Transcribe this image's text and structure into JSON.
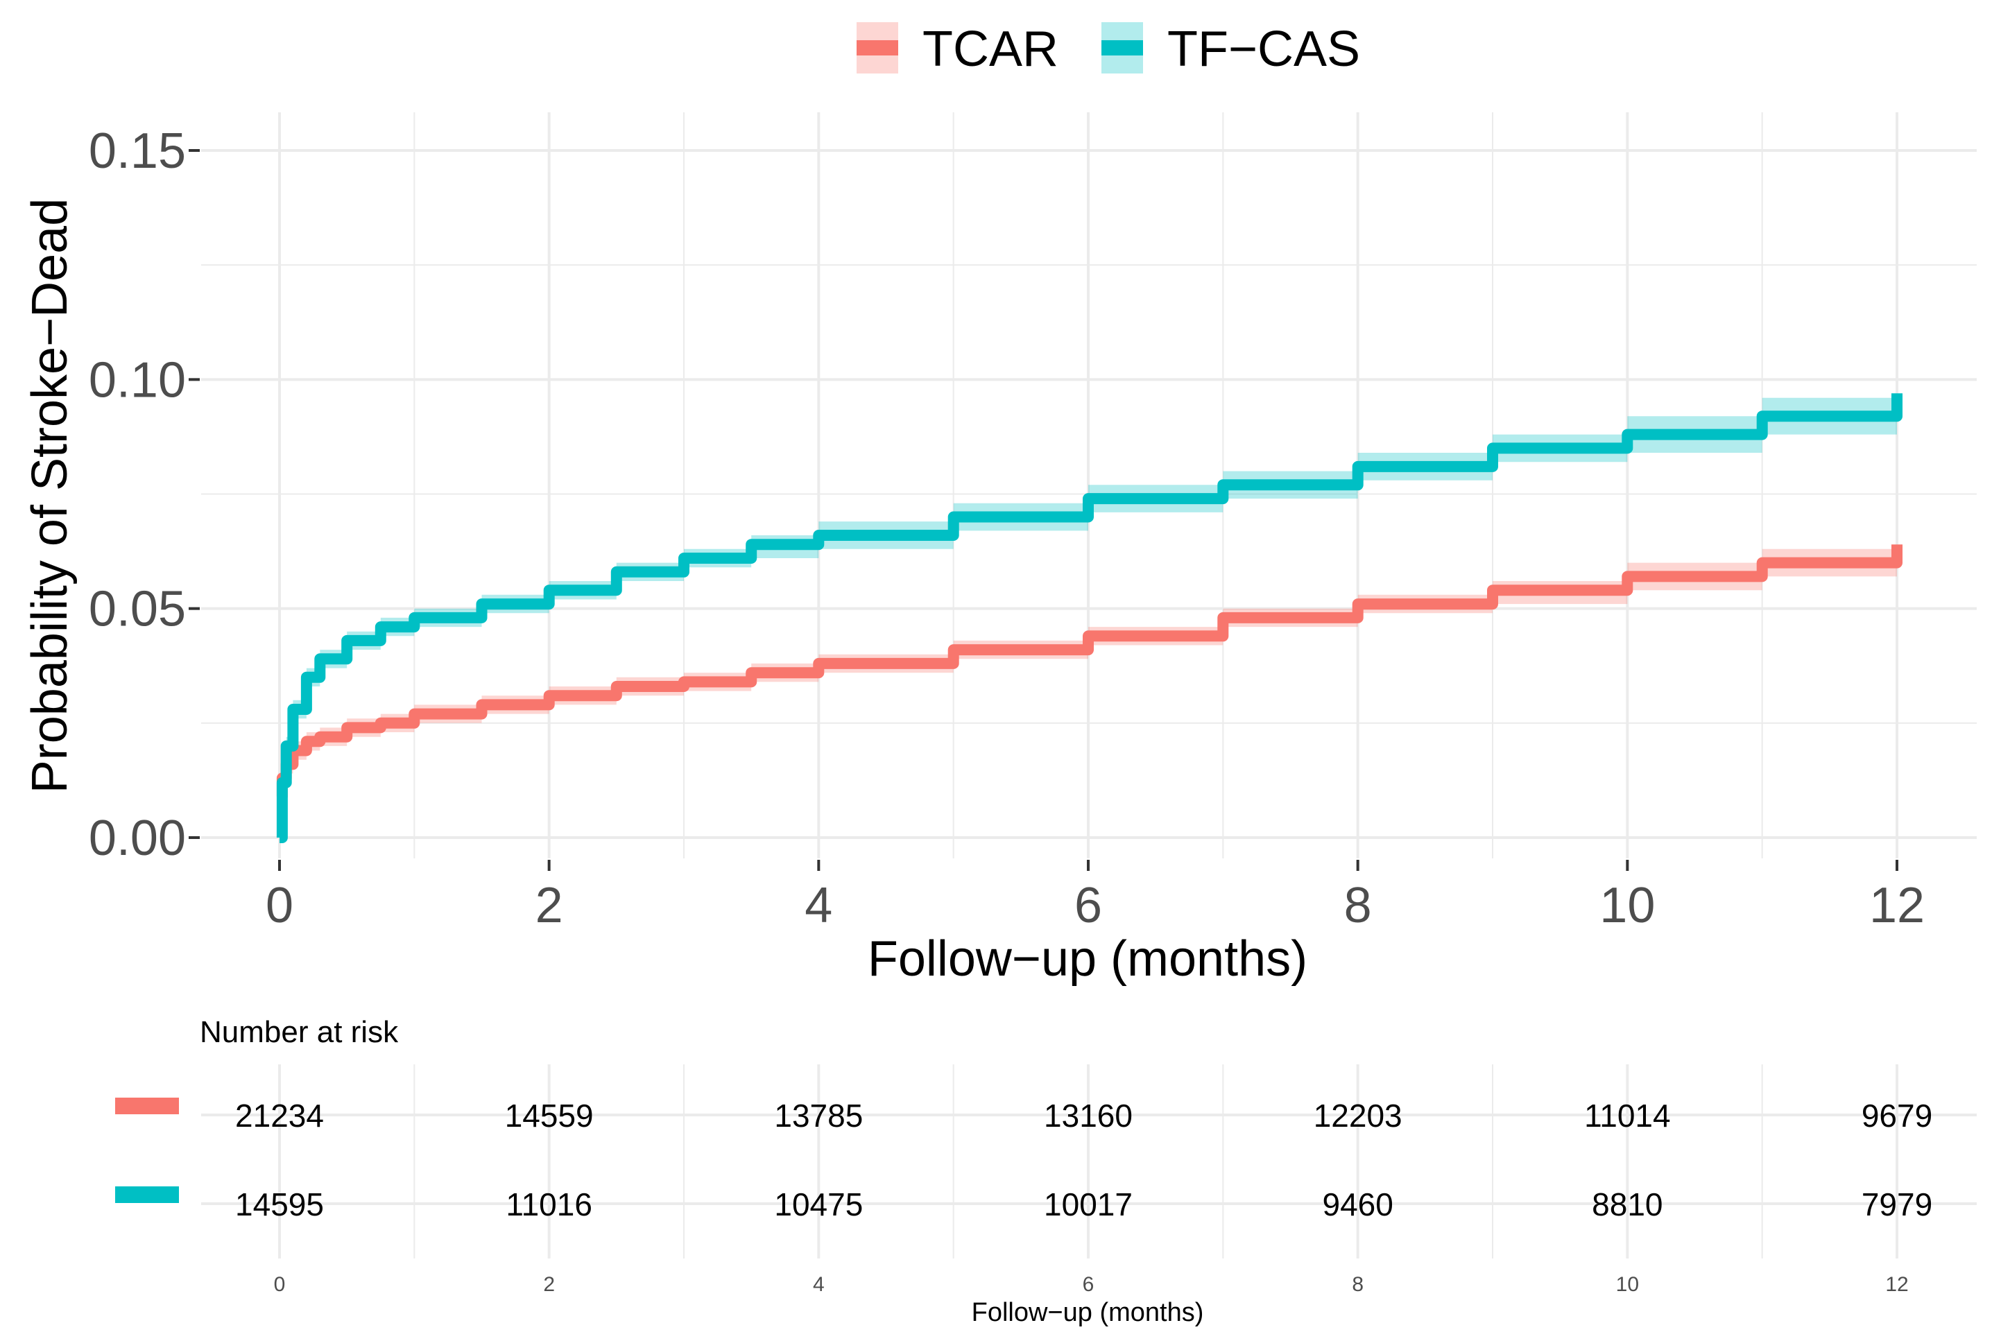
{
  "chart_data": {
    "type": "line",
    "subtype": "cumulative-incidence-step",
    "title": "",
    "xlabel": "Follow−up (months)",
    "ylabel": "Probability of Stroke−Dead",
    "xlim": [
      0,
      12
    ],
    "ylim": [
      0,
      0.15
    ],
    "x_ticks": [
      "0",
      "2",
      "4",
      "6",
      "8",
      "10",
      "12"
    ],
    "y_ticks": [
      "0.00",
      "0.05",
      "0.10",
      "0.15"
    ],
    "grid": true,
    "legend_position": "top",
    "series": [
      {
        "name": "TCAR",
        "color": "#F8766D",
        "band_color": "#F8766D",
        "x": [
          0,
          0.02,
          0.05,
          0.1,
          0.2,
          0.3,
          0.5,
          0.75,
          1,
          1.5,
          2,
          2.5,
          3,
          3.5,
          4,
          5,
          6,
          7,
          8,
          9,
          10,
          11,
          12
        ],
        "values": [
          0.009,
          0.013,
          0.016,
          0.019,
          0.021,
          0.022,
          0.024,
          0.025,
          0.027,
          0.029,
          0.031,
          0.033,
          0.034,
          0.036,
          0.038,
          0.041,
          0.044,
          0.048,
          0.051,
          0.054,
          0.057,
          0.06,
          0.064
        ],
        "lower": [
          0.007,
          0.011,
          0.014,
          0.017,
          0.019,
          0.02,
          0.022,
          0.023,
          0.025,
          0.027,
          0.029,
          0.031,
          0.032,
          0.034,
          0.036,
          0.039,
          0.042,
          0.046,
          0.049,
          0.051,
          0.054,
          0.057,
          0.061
        ],
        "upper": [
          0.011,
          0.015,
          0.018,
          0.021,
          0.023,
          0.024,
          0.026,
          0.027,
          0.029,
          0.031,
          0.033,
          0.035,
          0.036,
          0.038,
          0.04,
          0.043,
          0.046,
          0.05,
          0.053,
          0.056,
          0.06,
          0.063,
          0.068
        ]
      },
      {
        "name": "TF−CAS",
        "color": "#00BFC4",
        "band_color": "#00BFC4",
        "x": [
          0,
          0.02,
          0.05,
          0.1,
          0.2,
          0.3,
          0.5,
          0.75,
          1,
          1.5,
          2,
          2.5,
          3,
          3.5,
          4,
          5,
          6,
          7,
          8,
          9,
          10,
          11,
          12
        ],
        "values": [
          0.0,
          0.012,
          0.02,
          0.028,
          0.035,
          0.039,
          0.043,
          0.046,
          0.048,
          0.051,
          0.054,
          0.058,
          0.061,
          0.064,
          0.066,
          0.07,
          0.074,
          0.077,
          0.081,
          0.085,
          0.088,
          0.092,
          0.097
        ],
        "lower": [
          0.0,
          0.01,
          0.018,
          0.026,
          0.033,
          0.037,
          0.041,
          0.044,
          0.046,
          0.049,
          0.052,
          0.056,
          0.059,
          0.061,
          0.063,
          0.067,
          0.071,
          0.074,
          0.078,
          0.082,
          0.084,
          0.088,
          0.093
        ],
        "upper": [
          0.002,
          0.014,
          0.022,
          0.03,
          0.037,
          0.041,
          0.045,
          0.048,
          0.05,
          0.053,
          0.056,
          0.06,
          0.063,
          0.066,
          0.069,
          0.073,
          0.077,
          0.08,
          0.084,
          0.088,
          0.092,
          0.096,
          0.101
        ]
      }
    ],
    "risk_table": {
      "title": "Number at risk",
      "xlabel": "Follow−up (months)",
      "times": [
        "0",
        "2",
        "4",
        "6",
        "8",
        "10",
        "12"
      ],
      "rows": [
        {
          "name": "TCAR",
          "color": "#F8766D",
          "values": [
            "21234",
            "14559",
            "13785",
            "13160",
            "12203",
            "11014",
            "9679"
          ]
        },
        {
          "name": "TF−CAS",
          "color": "#00BFC4",
          "values": [
            "14595",
            "11016",
            "10475",
            "10017",
            "9460",
            "8810",
            "7979"
          ]
        }
      ]
    }
  }
}
